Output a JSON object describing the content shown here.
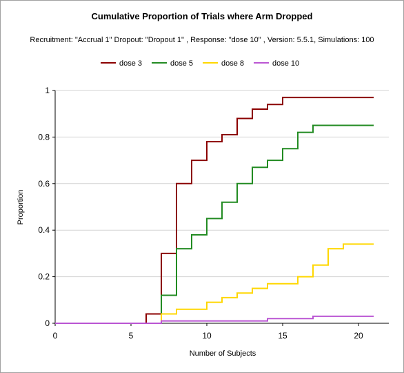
{
  "chart_data": {
    "type": "line",
    "step": true,
    "title": "Cumulative Proportion of Trials where Arm Dropped",
    "subtitle": "Recruitment: \"Accrual 1\" Dropout: \"Dropout 1\" , Response: \"dose 10\" , Version: 5.5.1, Simulations: 100",
    "xlabel": "Number of Subjects",
    "ylabel": "Proportion",
    "xlim": [
      0,
      22
    ],
    "ylim": [
      0,
      1
    ],
    "x_ticks": [
      0,
      5,
      10,
      15,
      20
    ],
    "y_ticks": [
      0,
      0.2,
      0.4,
      0.6,
      0.8,
      1
    ],
    "x_tick_labels": [
      "0",
      "5",
      "10",
      "15",
      "20"
    ],
    "y_tick_labels": [
      "0",
      "0.2",
      "0.4",
      "0.6",
      "0.8",
      "1"
    ],
    "grid": "horizontal",
    "legend_position": "top",
    "series": [
      {
        "name": "dose 3",
        "color": "#8b0000",
        "points": [
          [
            0,
            0
          ],
          [
            6,
            0
          ],
          [
            6,
            0.04
          ],
          [
            7,
            0.04
          ],
          [
            7,
            0.3
          ],
          [
            8,
            0.3
          ],
          [
            8,
            0.6
          ],
          [
            9,
            0.6
          ],
          [
            9,
            0.7
          ],
          [
            10,
            0.7
          ],
          [
            10,
            0.78
          ],
          [
            11,
            0.78
          ],
          [
            11,
            0.81
          ],
          [
            12,
            0.81
          ],
          [
            12,
            0.88
          ],
          [
            13,
            0.88
          ],
          [
            13,
            0.92
          ],
          [
            14,
            0.92
          ],
          [
            14,
            0.94
          ],
          [
            15,
            0.94
          ],
          [
            15,
            0.97
          ],
          [
            21,
            0.97
          ]
        ]
      },
      {
        "name": "dose 5",
        "color": "#228b22",
        "points": [
          [
            0,
            0
          ],
          [
            7,
            0
          ],
          [
            7,
            0.12
          ],
          [
            8,
            0.12
          ],
          [
            8,
            0.32
          ],
          [
            9,
            0.32
          ],
          [
            9,
            0.38
          ],
          [
            10,
            0.38
          ],
          [
            10,
            0.45
          ],
          [
            11,
            0.45
          ],
          [
            11,
            0.52
          ],
          [
            12,
            0.52
          ],
          [
            12,
            0.6
          ],
          [
            13,
            0.6
          ],
          [
            13,
            0.67
          ],
          [
            14,
            0.67
          ],
          [
            14,
            0.7
          ],
          [
            15,
            0.7
          ],
          [
            15,
            0.75
          ],
          [
            16,
            0.75
          ],
          [
            16,
            0.82
          ],
          [
            17,
            0.82
          ],
          [
            17,
            0.85
          ],
          [
            21,
            0.85
          ]
        ]
      },
      {
        "name": "dose 8",
        "color": "#ffd700",
        "points": [
          [
            0,
            0
          ],
          [
            7,
            0
          ],
          [
            7,
            0.04
          ],
          [
            8,
            0.04
          ],
          [
            8,
            0.06
          ],
          [
            10,
            0.06
          ],
          [
            10,
            0.09
          ],
          [
            11,
            0.09
          ],
          [
            11,
            0.11
          ],
          [
            12,
            0.11
          ],
          [
            12,
            0.13
          ],
          [
            13,
            0.13
          ],
          [
            13,
            0.15
          ],
          [
            14,
            0.15
          ],
          [
            14,
            0.17
          ],
          [
            16,
            0.17
          ],
          [
            16,
            0.2
          ],
          [
            17,
            0.2
          ],
          [
            17,
            0.25
          ],
          [
            18,
            0.25
          ],
          [
            18,
            0.32
          ],
          [
            19,
            0.32
          ],
          [
            19,
            0.34
          ],
          [
            21,
            0.34
          ]
        ]
      },
      {
        "name": "dose 10",
        "color": "#ba55d3",
        "points": [
          [
            0,
            0
          ],
          [
            7,
            0
          ],
          [
            7,
            0.01
          ],
          [
            14,
            0.01
          ],
          [
            14,
            0.02
          ],
          [
            17,
            0.02
          ],
          [
            17,
            0.03
          ],
          [
            21,
            0.03
          ]
        ]
      }
    ]
  }
}
